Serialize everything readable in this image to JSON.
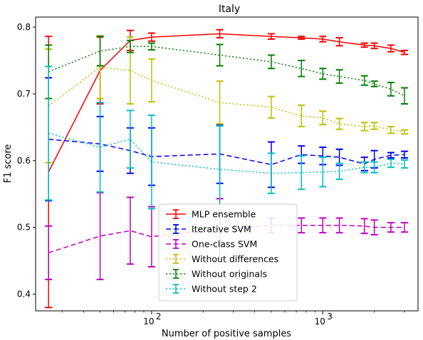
{
  "chart_data": {
    "type": "line",
    "title": "Italy",
    "xlabel": "Number of positive samples",
    "ylabel": "F1 score",
    "xscale": "log",
    "xlim": [
      21,
      3600
    ],
    "ylim": [
      0.375,
      0.815
    ],
    "yticks": [
      0.4,
      0.5,
      0.6,
      0.7,
      0.8
    ],
    "ytick_labels": [
      "0.4",
      "0.5",
      "0.6",
      "0.7",
      "0.8"
    ],
    "xticks": [
      100,
      1000
    ],
    "xtick_labels": [
      "10",
      "10"
    ],
    "xtick_exponent": "2",
    "xtick_exponents": [
      "2",
      "3"
    ],
    "grid": false,
    "legend_position": "lower-center",
    "x": [
      25,
      50,
      75,
      100,
      250,
      500,
      750,
      1000,
      1250,
      1750,
      2000,
      2500,
      3000
    ],
    "series": [
      {
        "name": "MLP ensemble",
        "color": "#ff0000",
        "dash": "solid",
        "values": [
          0.583,
          0.735,
          0.78,
          0.785,
          0.79,
          0.786,
          0.784,
          0.782,
          0.778,
          0.773,
          0.772,
          0.768,
          0.762
        ],
        "errors": [
          0.203,
          0.05,
          0.015,
          0.006,
          0.006,
          0.004,
          0.002,
          0.004,
          0.006,
          0.003,
          0.004,
          0.005,
          0.003
        ]
      },
      {
        "name": "Iterative SVM",
        "color": "#0000ff",
        "dash": "dashed",
        "values": [
          0.632,
          0.625,
          0.615,
          0.606,
          0.61,
          0.594,
          0.609,
          0.607,
          0.605,
          0.595,
          0.602,
          0.608,
          0.609
        ],
        "errors": [
          0.092,
          0.041,
          0.034,
          0.043,
          0.044,
          0.034,
          0.013,
          0.013,
          0.012,
          0.01,
          0.013,
          0.004,
          0.005
        ]
      },
      {
        "name": "One-class SVM",
        "color": "#bf00bf",
        "dash": "dashed",
        "values": [
          0.462,
          0.487,
          0.495,
          0.486,
          0.498,
          0.503,
          0.503,
          0.503,
          0.503,
          0.502,
          0.5,
          0.5,
          0.5
        ],
        "errors": [
          0.04,
          0.065,
          0.05,
          0.045,
          0.045,
          0.011,
          0.011,
          0.011,
          0.011,
          0.011,
          0.011,
          0.007,
          0.007
        ]
      },
      {
        "name": "Without differences",
        "color": "#bfbf00",
        "dash": "dotted",
        "values": [
          0.682,
          0.74,
          0.735,
          0.72,
          0.687,
          0.68,
          0.667,
          0.664,
          0.655,
          0.651,
          0.652,
          0.646,
          0.643
        ],
        "errors": [
          0.085,
          0.047,
          0.05,
          0.032,
          0.032,
          0.016,
          0.016,
          0.01,
          0.008,
          0.006,
          0.005,
          0.005,
          0.003
        ]
      },
      {
        "name": "Without originals",
        "color": "#008000",
        "dash": "dotted",
        "values": [
          0.733,
          0.764,
          0.771,
          0.771,
          0.758,
          0.748,
          0.738,
          0.73,
          0.726,
          0.72,
          0.715,
          0.707,
          0.697
        ],
        "errors": [
          0.04,
          0.022,
          0.009,
          0.005,
          0.016,
          0.01,
          0.012,
          0.008,
          0.01,
          0.007,
          0.004,
          0.01,
          0.012
        ]
      },
      {
        "name": "Without step 2",
        "color": "#00bfbf",
        "dash": "dotted",
        "values": [
          0.641,
          0.62,
          0.632,
          0.598,
          0.587,
          0.581,
          0.582,
          0.583,
          0.584,
          0.59,
          0.59,
          0.596,
          0.595
        ],
        "errors": [
          0.1,
          0.067,
          0.043,
          0.07,
          0.065,
          0.03,
          0.025,
          0.022,
          0.012,
          0.008,
          0.008,
          0.006,
          0.006
        ]
      }
    ]
  }
}
